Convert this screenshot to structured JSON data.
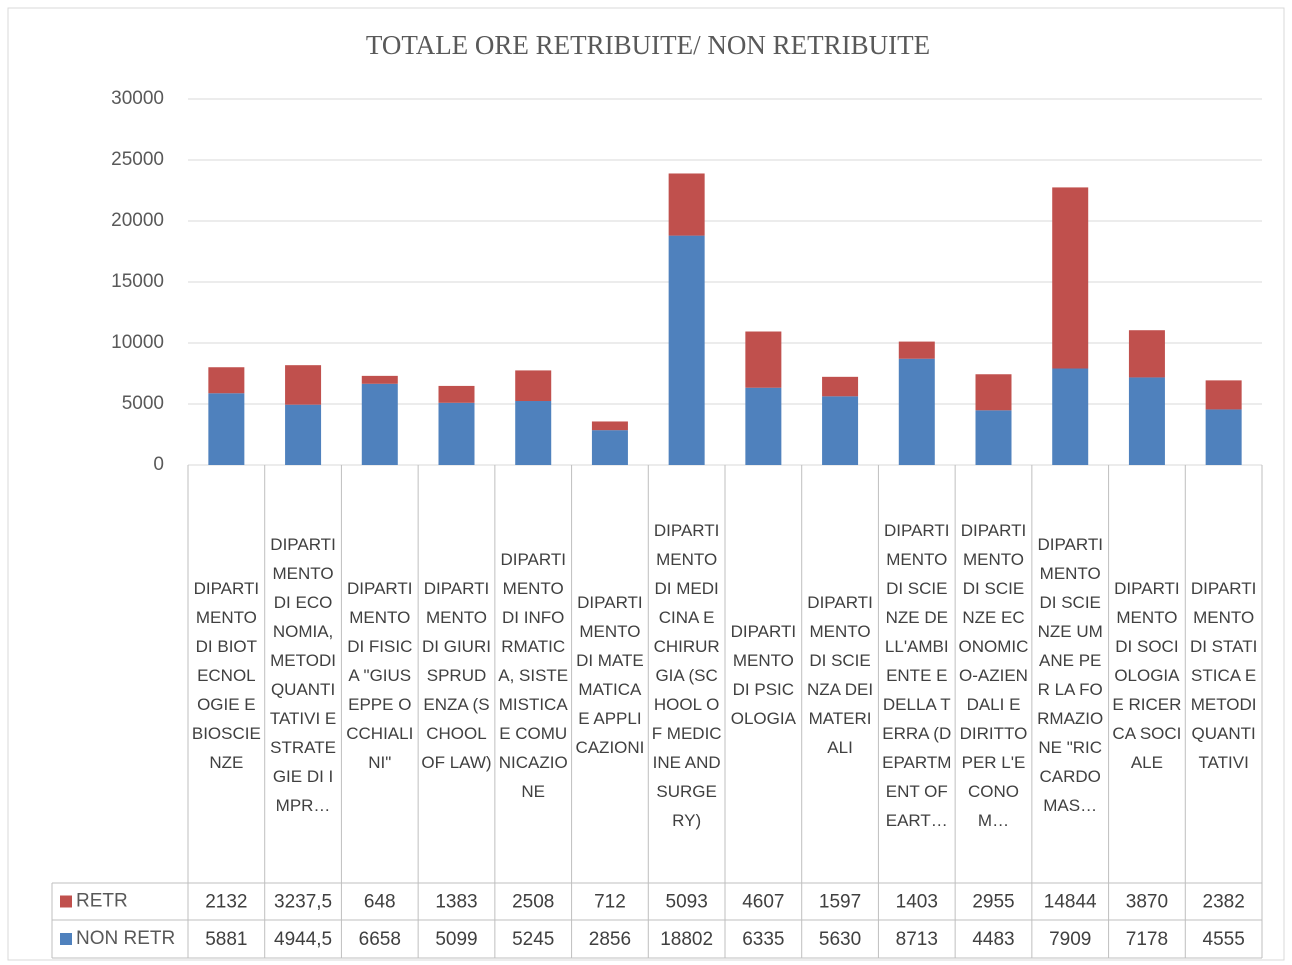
{
  "chart_data": {
    "type": "stacked_bar",
    "title": "TOTALE ORE RETRIBUITE/ NON RETRIBUITE",
    "categories": [
      "DIPARTIMENTO DI BIOTECNOLOGIE E BIOSCIENZE",
      "DIPARTIMENTO DI ECONOMIA, METODI QUANTITATIVI E STRATEGIE DI IMPR…",
      "DIPARTIMENTO DI FISICA \"GIUSEPPE OCCHIALINI\"",
      "DIPARTIMENTO DI GIURISPRUDENZA (SCHOOL OF LAW)",
      "DIPARTIMENTO DI INFORMATICA, SISTEMISTICA E COMUNICAZIONE",
      "DIPARTIMENTO DI MATEMATICA E APPLICAZIONI",
      "DIPARTIMENTO DI MEDICINA E CHIRURGIA (SCHOOL OF MEDICINE AND SURGERY)",
      "DIPARTIMENTO DI PSICOLOGIA",
      "DIPARTIMENTO DI SCIENZA DEI MATERIALI",
      "DIPARTIMENTO DI SCIENZE DELL'AMBIENTE E DELLA TERRA (DEPARTMENT OF EART…",
      "DIPARTIMENTO DI SCIENZE ECONOMICO-AZIENDALI E DIRITTO PER L'ECONOM…",
      "DIPARTIMENTO DI SCIENZE UMANE PER LA FORMAZIONE \"RICCARDO MAS…",
      "DIPARTIMENTO DI SOCIOLOGIA E RICERCA SOCIALE",
      "DIPARTIMENTO DI STATISTICA E METODI QUANTITATIVI"
    ],
    "series": [
      {
        "name": "RETR",
        "color": "#c0504d",
        "values": [
          2132,
          3237.5,
          648,
          1383,
          2508,
          712,
          5093,
          4607,
          1597,
          1403,
          2955,
          14844,
          3870,
          2382
        ],
        "value_labels": [
          "2132",
          "3237,5",
          "648",
          "1383",
          "2508",
          "712",
          "5093",
          "4607",
          "1597",
          "1403",
          "2955",
          "14844",
          "3870",
          "2382"
        ]
      },
      {
        "name": "NON RETR",
        "color": "#4f81bd",
        "values": [
          5881,
          4944.5,
          6658,
          5099,
          5245,
          2856,
          18802,
          6335,
          5630,
          8713,
          4483,
          7909,
          7178,
          4555
        ],
        "value_labels": [
          "5881",
          "4944,5",
          "6658",
          "5099",
          "5245",
          "2856",
          "18802",
          "6335",
          "5630",
          "8713",
          "4483",
          "7909",
          "7178",
          "4555"
        ]
      }
    ],
    "ylim": [
      0,
      30000
    ],
    "yticks": [
      0,
      5000,
      10000,
      15000,
      20000,
      25000,
      30000
    ],
    "grid": true
  }
}
